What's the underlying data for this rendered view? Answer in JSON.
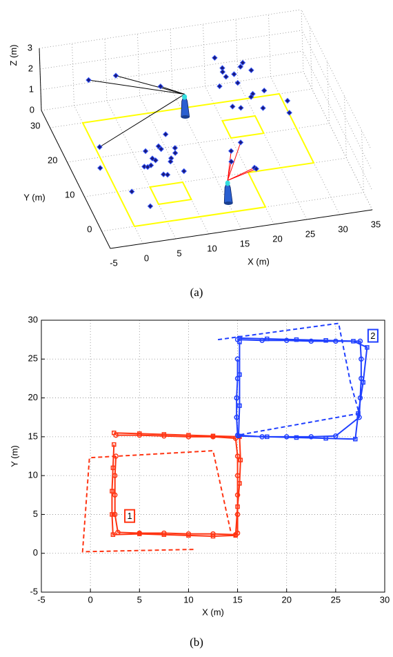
{
  "chart_data": [
    {
      "type": "scatter3d",
      "caption": "(a)",
      "xlabel": "X (m)",
      "ylabel": "Y (m)",
      "zlabel": "Z (m)",
      "xlim": [
        -5,
        35
      ],
      "ylim": [
        -5,
        35
      ],
      "zlim": [
        0,
        3
      ],
      "xticks": [
        -5,
        0,
        5,
        10,
        15,
        20,
        25,
        30,
        35
      ],
      "yticks": [
        0,
        10,
        20,
        30
      ],
      "zticks": [
        0,
        1,
        2,
        3
      ],
      "grid": true,
      "points": {
        "color": "#1a1a7a",
        "edge_color": "#3355ff",
        "x": [
          4,
          5,
          5.5,
          6,
          6.5,
          7,
          7.5,
          8,
          8.5,
          9,
          9.5,
          10,
          6,
          7,
          8.5,
          5,
          20,
          21,
          21.5,
          22,
          22.5,
          23,
          23.5,
          24,
          24.5,
          25,
          25.5,
          26,
          22,
          24,
          27,
          20.5,
          2.5,
          6,
          0,
          -1,
          1,
          3,
          17,
          18,
          19,
          20,
          21,
          29,
          30,
          12
        ],
        "y": [
          9,
          11,
          8,
          12,
          10,
          9.5,
          12.5,
          8.5,
          11,
          10,
          12,
          9,
          13,
          7,
          13.5,
          12,
          26,
          28,
          24.5,
          30,
          27,
          25.5,
          29,
          27.5,
          31,
          26,
          28.5,
          24,
          32,
          23,
          27,
          30.5,
          35.7,
          33,
          20,
          16,
          5,
          2,
          8,
          12,
          10,
          6,
          9,
          20,
          25,
          30
        ],
        "z": [
          1.2,
          0.8,
          1.6,
          1,
          1.9,
          0.6,
          1.3,
          1.5,
          0.9,
          1.7,
          1.1,
          0.7,
          0.5,
          1,
          1.8,
          1.4,
          1.5,
          2,
          0.7,
          1.2,
          1.8,
          0.4,
          1,
          2.2,
          1.4,
          0.9,
          1.6,
          0.5,
          1.1,
          1.3,
          0.8,
          2.1,
          1,
          1.5,
          0.5,
          0.2,
          0.8,
          0.5,
          1,
          0.8,
          1.5,
          0.9,
          0.3,
          0.8,
          0.5,
          1.2
        ]
      },
      "robots": [
        {
          "x": 15,
          "y": 27.5,
          "z": 1.1,
          "color": "#000000",
          "observed": [
            32,
            33,
            34,
            45
          ]
        },
        {
          "x": 15,
          "y": 2.5,
          "z": 1.1,
          "color": "#ff0000",
          "observed": [
            38,
            39,
            40,
            41,
            42
          ]
        }
      ],
      "map": {
        "color": "#ffff00",
        "polygons": [
          {
            "x": [
              0,
              20,
              20,
              30,
              30,
              0
            ],
            "y": [
              0,
              0,
              10,
              10,
              30,
              30
            ]
          },
          {
            "x": [
              5,
              10,
              10,
              5
            ],
            "y": [
              5,
              5,
              10,
              10
            ]
          },
          {
            "x": [
              20,
              25,
              25,
              20
            ],
            "y": [
              20,
              20,
              25,
              25
            ]
          }
        ]
      }
    },
    {
      "type": "line",
      "caption": "(b)",
      "xlabel": "X (m)",
      "ylabel": "Y (m)",
      "xlim": [
        -5,
        30
      ],
      "ylim": [
        -5,
        30
      ],
      "xticks": [
        -5,
        0,
        5,
        10,
        15,
        20,
        25,
        30
      ],
      "yticks": [
        -5,
        0,
        5,
        10,
        15,
        20,
        25,
        30
      ],
      "grid": true,
      "series": [
        {
          "color": "#ff3311",
          "marker": "circle",
          "linestyle": "solid",
          "x": [
            2.6,
            5,
            7.5,
            10,
            12.5,
            14.8,
            15,
            15,
            15,
            15,
            15,
            14.8,
            12.5,
            10,
            7.5,
            5,
            2.8,
            2.5,
            2.5,
            2.5,
            2.6
          ],
          "values": [
            15.2,
            15.2,
            15.1,
            15,
            15,
            14.8,
            12.5,
            10,
            7.5,
            5,
            2.6,
            2.4,
            2.5,
            2.5,
            2.6,
            2.6,
            2.7,
            5,
            7.5,
            10,
            12.5
          ]
        },
        {
          "color": "#ff3311",
          "marker": "square",
          "linestyle": "solid",
          "x": [
            2.4,
            5,
            7.5,
            10,
            12.5,
            15.2,
            15.3,
            15.2,
            15,
            14.8,
            12.5,
            10,
            7.5,
            5,
            2.3,
            2.2,
            2.2,
            2.3,
            2.4
          ],
          "values": [
            15.5,
            15.4,
            15.3,
            15.2,
            15.1,
            15,
            12,
            9,
            6,
            2.3,
            2.2,
            2.3,
            2.4,
            2.5,
            2.4,
            5,
            8,
            11,
            14
          ]
        },
        {
          "color": "#ff3311",
          "marker": "none",
          "linestyle": "dashed",
          "x": [
            10.5,
            -0.8,
            -0.1,
            12.5,
            14.3
          ],
          "values": [
            0.5,
            0.2,
            12.3,
            13.2,
            2.8
          ]
        },
        {
          "color": "#1f3fff",
          "marker": "circle",
          "linestyle": "solid",
          "x": [
            15,
            17.5,
            20,
            22.5,
            25,
            27.5,
            27.6,
            27.6,
            27.5,
            27.4,
            25,
            22.5,
            20,
            17.5,
            15,
            14.9,
            14.9,
            15,
            15
          ],
          "values": [
            27.5,
            27.4,
            27.4,
            27.3,
            27.3,
            27.3,
            25,
            22.5,
            20,
            17.5,
            15.1,
            15,
            15,
            15,
            15.2,
            17.5,
            20,
            22.5,
            25
          ]
        },
        {
          "color": "#1f3fff",
          "marker": "square",
          "linestyle": "solid",
          "x": [
            15.2,
            18,
            21,
            24,
            26.8,
            28.2,
            27.8,
            27.3,
            27,
            24,
            21,
            18,
            15.1,
            15.2,
            15.2,
            15.2
          ],
          "values": [
            27.7,
            27.6,
            27.5,
            27.4,
            27.3,
            26.5,
            22,
            18,
            14.7,
            14.8,
            14.9,
            15,
            15.1,
            19,
            23,
            27.2
          ]
        },
        {
          "color": "#1f3fff",
          "marker": "none",
          "linestyle": "dashed",
          "x": [
            13,
            25.3,
            26.5,
            27.4,
            15
          ],
          "values": [
            27.5,
            29.6,
            22,
            18,
            15.2
          ]
        }
      ],
      "annotations": [
        {
          "text": "1",
          "x": 4,
          "y": 4.8,
          "color": "#ff3311"
        },
        {
          "text": "2",
          "x": 28.8,
          "y": 28,
          "color": "#1f3fff"
        }
      ]
    }
  ]
}
